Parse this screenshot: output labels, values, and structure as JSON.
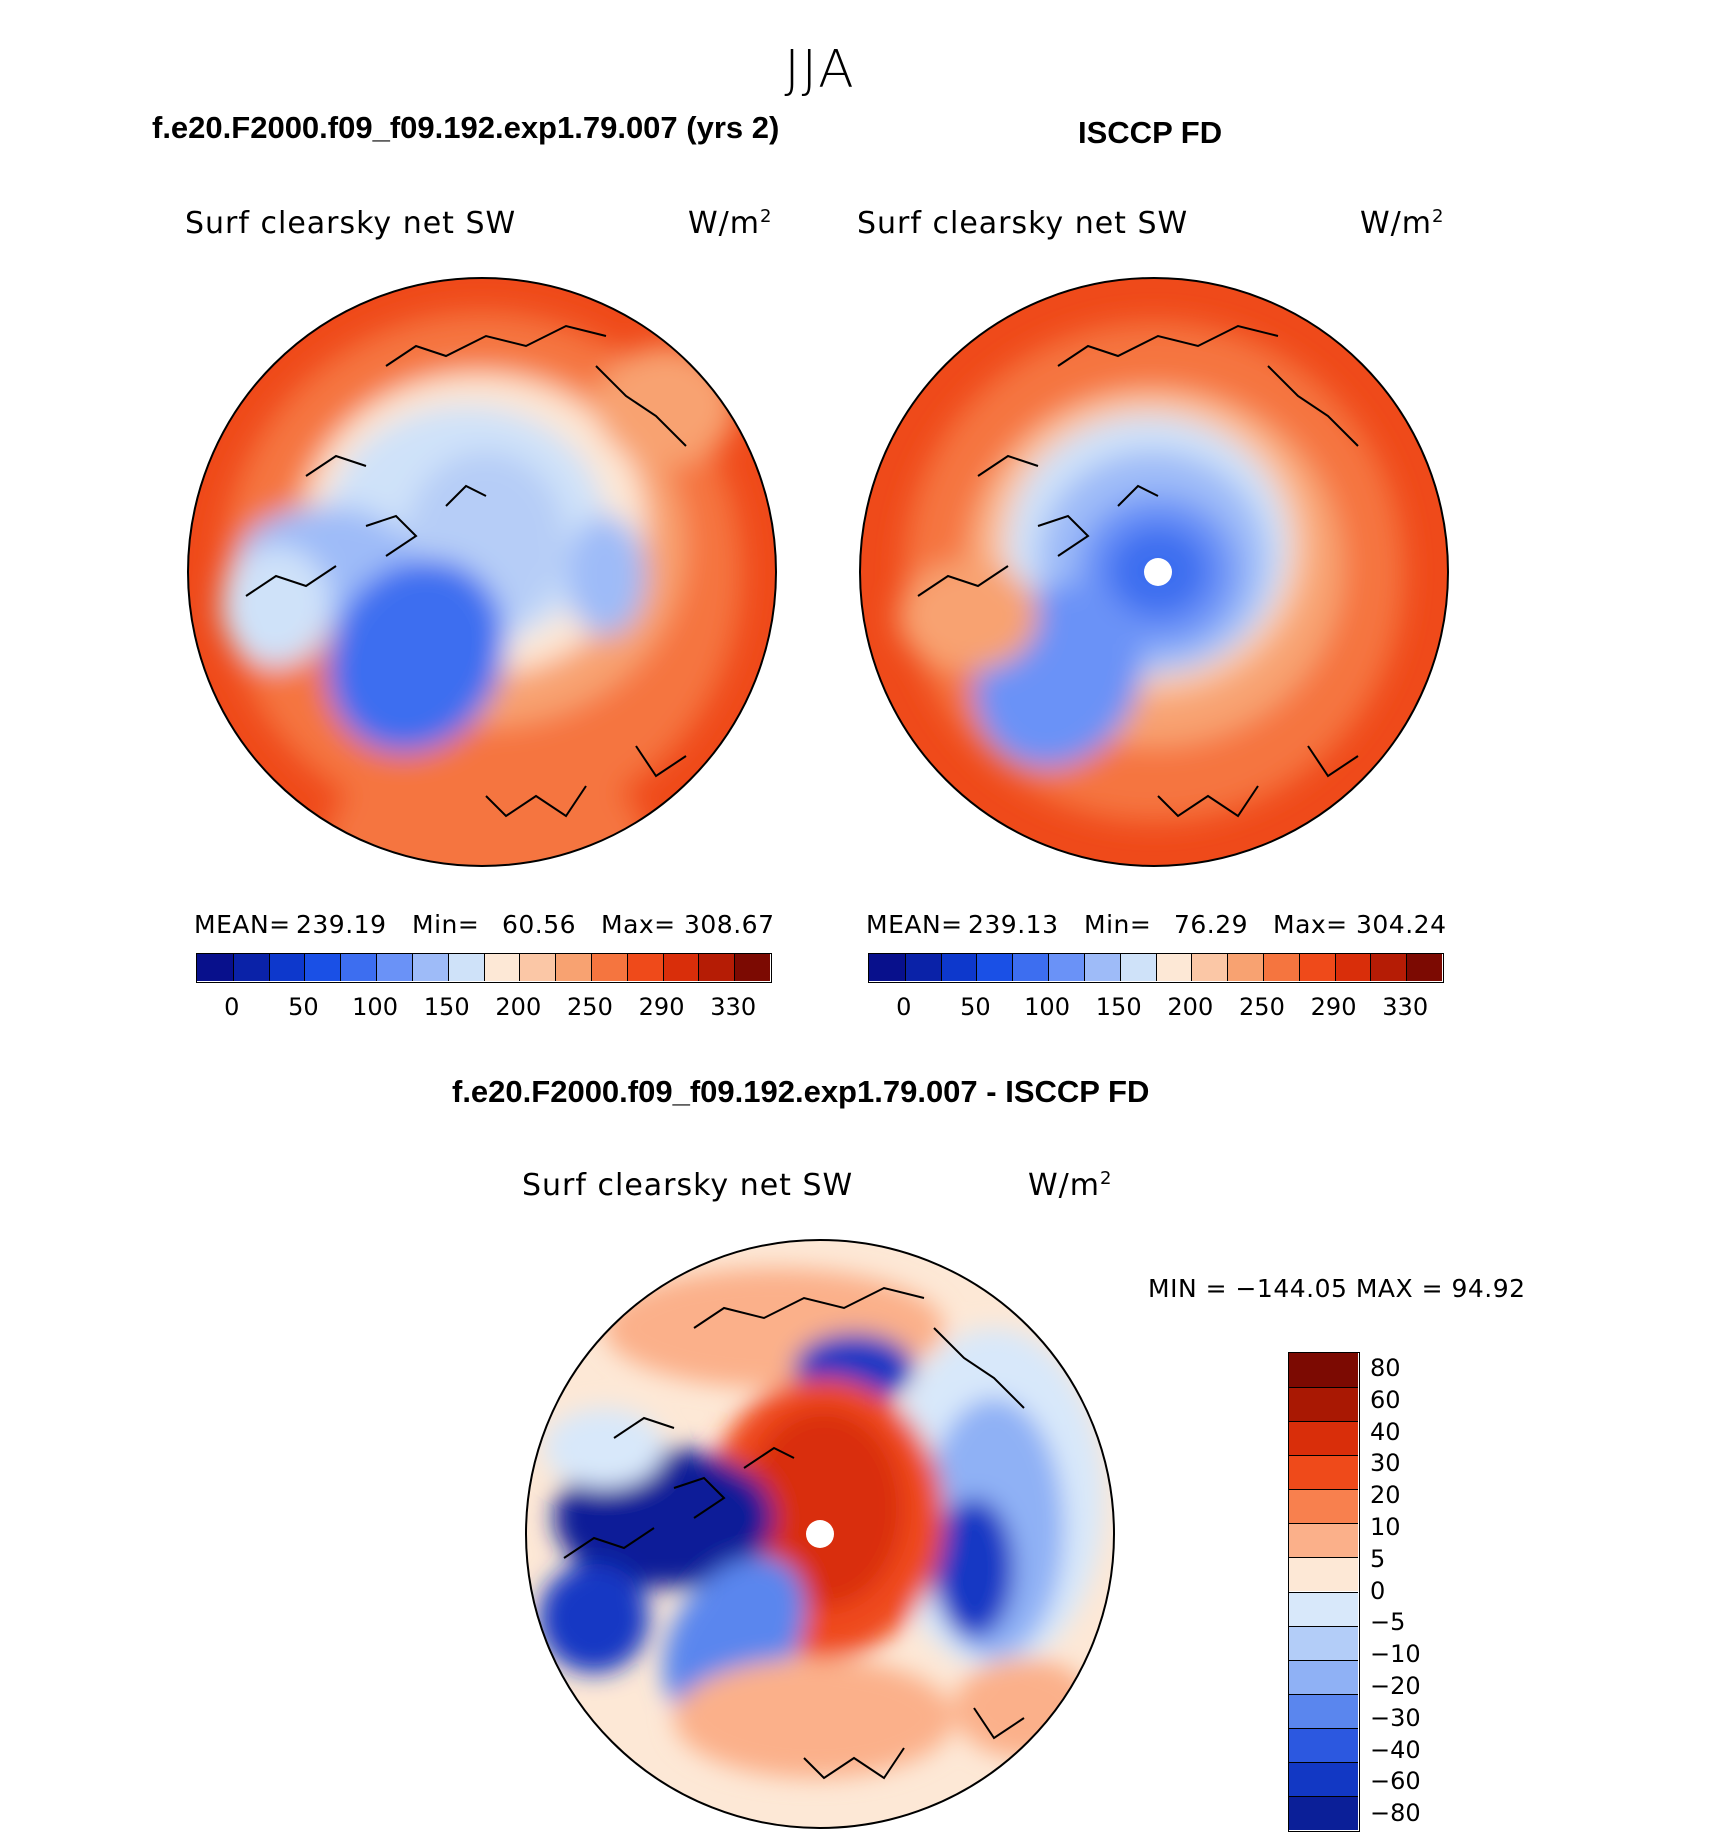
{
  "season_title": "JJA",
  "panels": [
    {
      "header": "f.e20.F2000.f09_f09.192.exp1.79.007 (yrs 2)",
      "variable": "Surf clearsky net SW",
      "unit_base": "W/m",
      "unit_exp": "2",
      "mean_label": "MEAN=",
      "mean": "239.19",
      "min_label": "Min=",
      "min": "60.56",
      "max_label": "Max=",
      "max": "308.67"
    },
    {
      "header": "ISCCP FD",
      "variable": "Surf clearsky net SW",
      "unit_base": "W/m",
      "unit_exp": "2",
      "mean_label": "MEAN=",
      "mean": "239.13",
      "min_label": "Min=",
      "min": "76.29",
      "max_label": "Max=",
      "max": "304.24"
    }
  ],
  "abs_colorbar": {
    "colors": [
      "#08108c",
      "#0a22a8",
      "#0d38cc",
      "#1a50e6",
      "#3d6ef0",
      "#6a92f7",
      "#9ebbf8",
      "#cfe2f9",
      "#fde8d6",
      "#fbc7a6",
      "#f8a271",
      "#f5753f",
      "#ef4a1a",
      "#d92e0a",
      "#b51c05",
      "#7c0a02"
    ],
    "ticks": [
      "0",
      "50",
      "100",
      "150",
      "200",
      "250",
      "290",
      "330"
    ]
  },
  "diff": {
    "header": "f.e20.F2000.f09_f09.192.exp1.79.007 - ISCCP FD",
    "variable": "Surf clearsky net SW",
    "unit_base": "W/m",
    "unit_exp": "2",
    "minmax": "MIN = −144.05 MAX =   94.92",
    "colorbar": {
      "colors_top_to_bottom": [
        "#7c0a02",
        "#a91803",
        "#d92e0a",
        "#ef4a1a",
        "#f8804e",
        "#fbb08a",
        "#fde8d6",
        "#d8e8fa",
        "#b3cdf8",
        "#8fb1f5",
        "#5a86ee",
        "#2c58e0",
        "#1238c4",
        "#0b1f98"
      ],
      "ticks_top_to_bottom": [
        "80",
        "60",
        "40",
        "30",
        "20",
        "10",
        "5",
        "0",
        "−5",
        "−10",
        "−20",
        "−30",
        "−40",
        "−60",
        "−80"
      ]
    }
  }
}
